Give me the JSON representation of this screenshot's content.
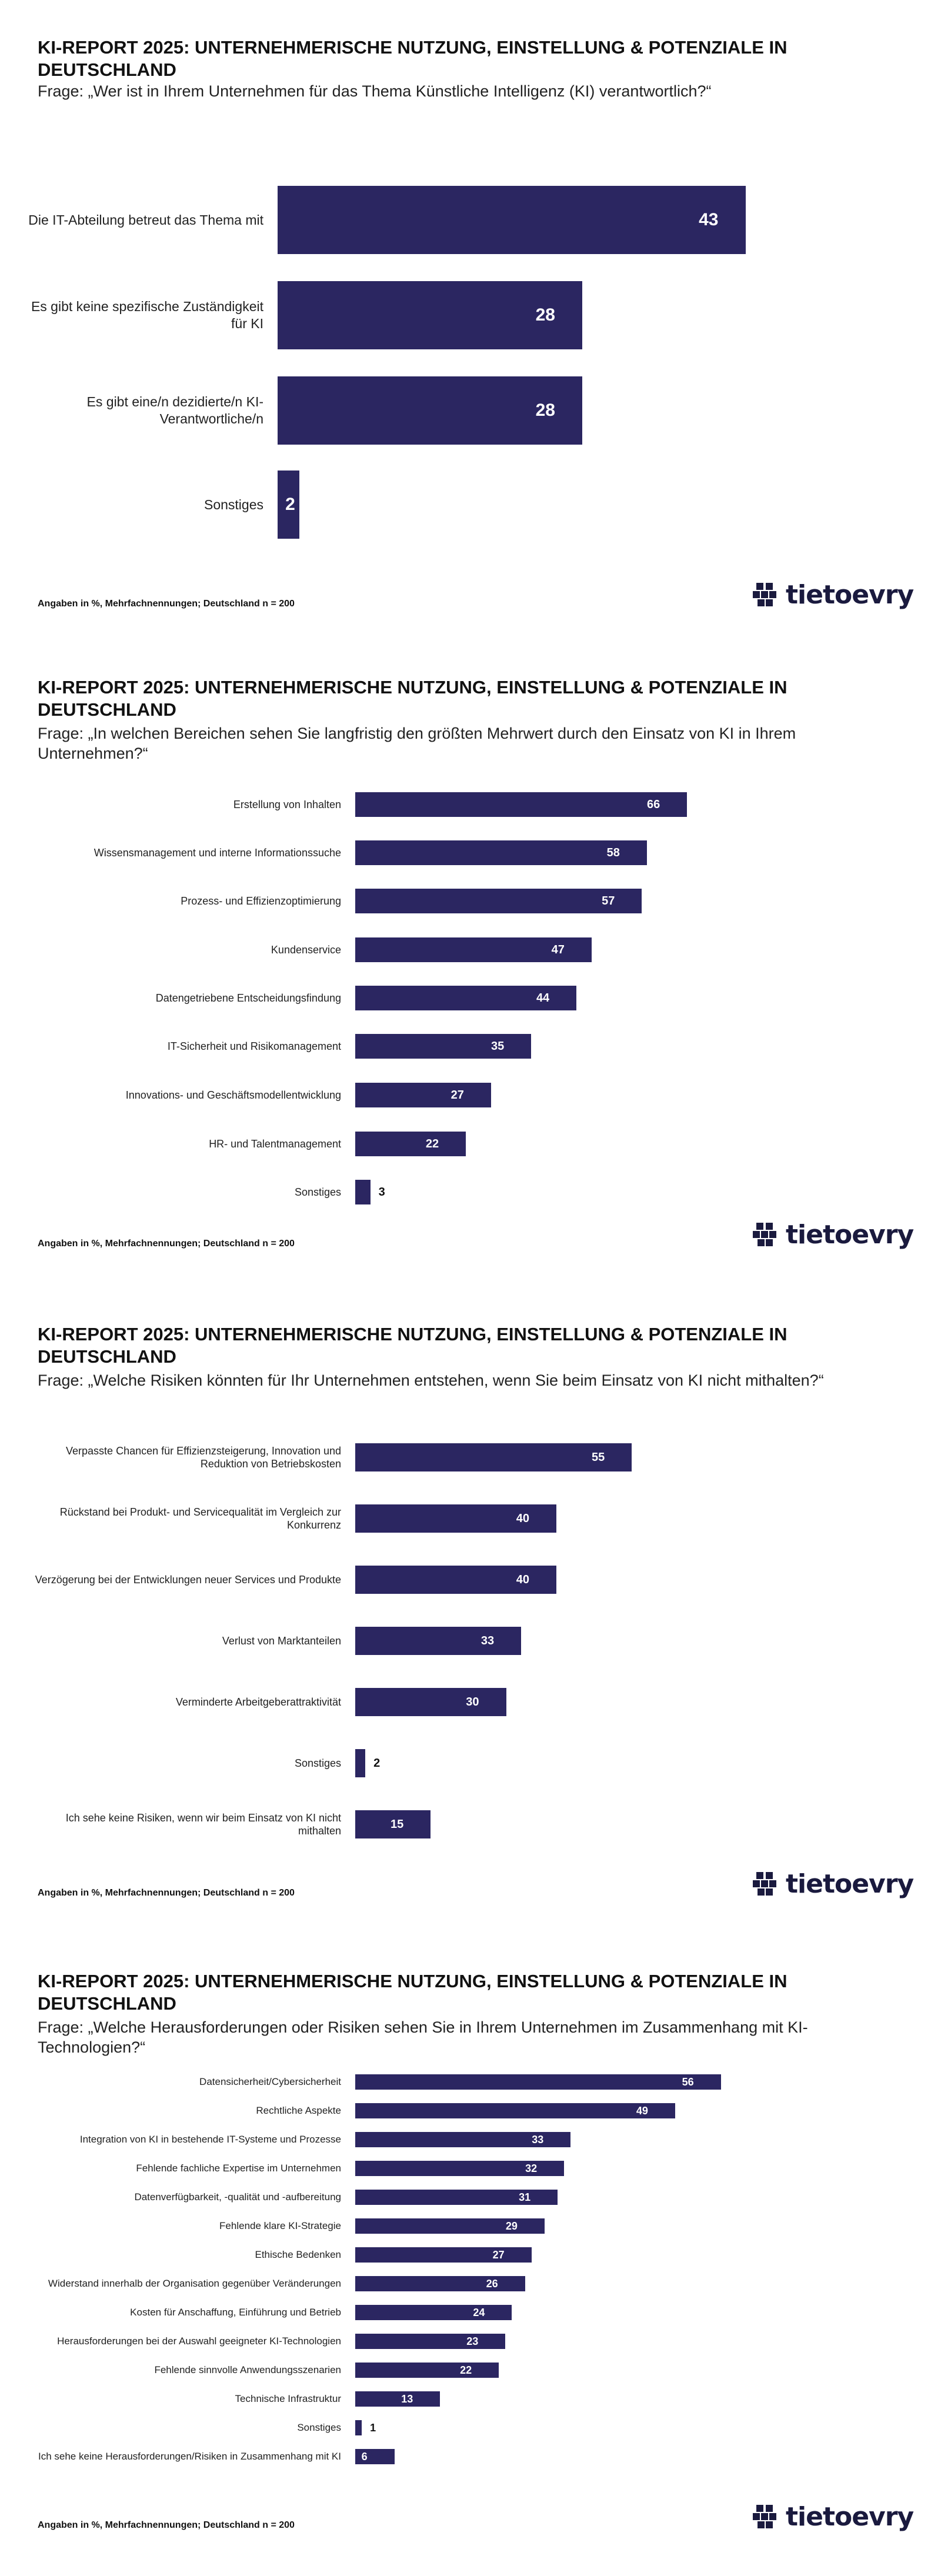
{
  "footnote": "Angaben in %, Mehrfachnennungen; Deutschland n = 200",
  "logo": {
    "text": "tietoevry",
    "icon": "tietoevry-logo-icon"
  },
  "colors": {
    "bar": "#2b2661",
    "text": "#111111",
    "value_inside": "#ffffff"
  },
  "chart_data": [
    {
      "type": "bar",
      "orientation": "horizontal",
      "title": "KI-REPORT 2025: UNTERNEHMERISCHE NUTZUNG, EINSTELLUNG & POTENZIALE IN DEUTSCHLAND",
      "question": "Frage: „Wer ist in Ihrem Unternehmen für das Thema Künstliche Intelligenz (KI) verantwortlich?“",
      "categories": [
        "Die IT-Abteilung betreut das Thema mit",
        "Es gibt keine spezifische Zuständigkeit für KI",
        "Es gibt eine/n dezidierte/n KI-Verantwortliche/n",
        "Sonstiges"
      ],
      "values": [
        43,
        28,
        28,
        2
      ],
      "xlim": [
        0,
        70
      ],
      "grid": false,
      "footnote": "Angaben in %, Mehrfachnennungen; Deutschland n = 200"
    },
    {
      "type": "bar",
      "orientation": "horizontal",
      "title": "KI-REPORT 2025: UNTERNEHMERISCHE NUTZUNG, EINSTELLUNG & POTENZIALE IN DEUTSCHLAND",
      "question": "Frage: „In welchen Bereichen sehen Sie langfristig den größten Mehrwert durch den Einsatz von KI in Ihrem Unternehmen?“",
      "categories": [
        "Erstellung von Inhalten",
        "Wissensmanagement und interne Informationssuche",
        "Prozess- und Effizienzoptimierung",
        "Kundenservice",
        "Datengetriebene Entscheidungsfindung",
        "IT-Sicherheit und Risikomanagement",
        "Innovations- und Geschäftsmodellentwicklung",
        "HR- und Talentmanagement",
        "Sonstiges"
      ],
      "values": [
        66,
        58,
        57,
        47,
        44,
        35,
        27,
        22,
        3
      ],
      "xlim": [
        0,
        100
      ],
      "grid": false,
      "footnote": "Angaben in %, Mehrfachnennungen; Deutschland n = 200"
    },
    {
      "type": "bar",
      "orientation": "horizontal",
      "title": "KI-REPORT 2025: UNTERNEHMERISCHE NUTZUNG, EINSTELLUNG & POTENZIALE IN DEUTSCHLAND",
      "question": "Frage: „Welche Risiken könnten für Ihr Unternehmen entstehen, wenn Sie beim Einsatz von KI nicht mithalten?“",
      "categories": [
        "Verpasste Chancen für Effizienzsteigerung, Innovation und Reduktion von Betriebskosten",
        "Rückstand bei Produkt- und Servicequalität im Vergleich zur Konkurrenz",
        "Verzögerung bei der Entwicklungen neuer Services und Produkte",
        "Verlust von Marktanteilen",
        "Verminderte Arbeitgeberattraktivität",
        "Sonstiges",
        "Ich sehe keine Risiken, wenn wir beim Einsatz von KI nicht mithalten"
      ],
      "values": [
        55,
        40,
        40,
        33,
        30,
        2,
        15
      ],
      "xlim": [
        0,
        100
      ],
      "grid": false,
      "footnote": "Angaben in %, Mehrfachnennungen; Deutschland n = 200"
    },
    {
      "type": "bar",
      "orientation": "horizontal",
      "title": "KI-REPORT 2025: UNTERNEHMERISCHE NUTZUNG, EINSTELLUNG & POTENZIALE IN DEUTSCHLAND",
      "question": "Frage: „Welche Herausforderungen oder Risiken sehen Sie in Ihrem Unternehmen im Zusammenhang mit KI-Technologien?“",
      "categories": [
        "Datensicherheit/Cybersicherheit",
        "Rechtliche Aspekte",
        "Integration von KI in bestehende IT-Systeme und Prozesse",
        "Fehlende fachliche Expertise im Unternehmen",
        "Datenverfügbarkeit, -qualität und -aufbereitung",
        "Fehlende klare KI-Strategie",
        "Ethische Bedenken",
        "Widerstand innerhalb der Organisation gegenüber Veränderungen",
        "Kosten für Anschaffung, Einführung und Betrieb",
        "Herausforderungen bei der Auswahl geeigneter KI-Technologien",
        "Fehlende sinnvolle Anwendungsszenarien",
        "Technische Infrastruktur",
        "Sonstiges",
        "Ich sehe keine Herausforderungen/Risiken in Zusammenhang mit KI"
      ],
      "values": [
        56,
        49,
        33,
        32,
        31,
        29,
        27,
        26,
        24,
        23,
        22,
        13,
        1,
        6
      ],
      "xlim": [
        0,
        100
      ],
      "grid": false,
      "footnote": "Angaben in %, Mehrfachnennungen; Deutschland n = 200"
    }
  ]
}
